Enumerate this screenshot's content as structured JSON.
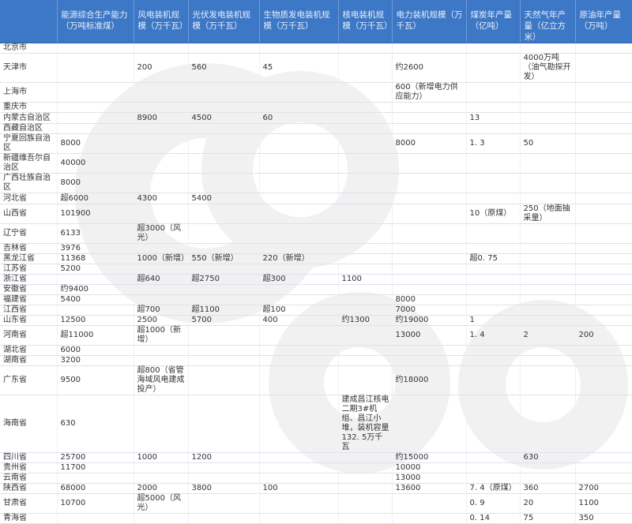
{
  "header": [
    "",
    "能源综合生产能力（万吨标准煤）",
    "风电装机规模（万千瓦）",
    "光伏发电装机规模（万千瓦）",
    "生物质发电装机规模（万千瓦）",
    "核电装机规模（万千瓦）",
    "电力装机规模（万千瓦）",
    "煤炭年产量（亿吨）",
    "天然气年产量（亿立方米）",
    "原油年产量（万吨）"
  ],
  "rows": [
    [
      "北京市",
      "",
      "",
      "",
      "",
      "",
      "",
      "",
      "",
      ""
    ],
    [
      "天津市",
      "",
      "200",
      "560",
      "45",
      "",
      "约2600",
      "",
      "4000万吨（油气勘探开发）",
      ""
    ],
    [
      "上海市",
      "",
      "",
      "",
      "",
      "",
      "600（新增电力供应能力）",
      "",
      "",
      ""
    ],
    [
      "重庆市",
      "",
      "",
      "",
      "",
      "",
      "",
      "",
      "",
      ""
    ],
    [
      "内蒙古自治区",
      "",
      "8900",
      "4500",
      "60",
      "",
      "",
      "13",
      "",
      ""
    ],
    [
      "西藏自治区",
      "",
      "",
      "",
      "",
      "",
      "",
      "",
      "",
      ""
    ],
    [
      "宁夏回族自治区",
      "8000",
      "",
      "",
      "",
      "",
      "8000",
      "1. 3",
      "50",
      ""
    ],
    [
      "新疆维吾尔自治区",
      "40000",
      "",
      "",
      "",
      "",
      "",
      "",
      "",
      ""
    ],
    [
      "广西壮族自治区",
      "8000",
      "",
      "",
      "",
      "",
      "",
      "",
      "",
      ""
    ],
    [
      "河北省",
      "超6000",
      "4300",
      "5400",
      "",
      "",
      "",
      "",
      "",
      ""
    ],
    [
      "山西省",
      "101900",
      "",
      "",
      "",
      "",
      "",
      "10（原煤）",
      "250（地面抽采量）",
      ""
    ],
    [
      "辽宁省",
      "6133",
      "超3000（风光）",
      "",
      "",
      "",
      "",
      "",
      "",
      ""
    ],
    [
      "吉林省",
      "3976",
      "",
      "",
      "",
      "",
      "",
      "",
      "",
      ""
    ],
    [
      "黑龙江省",
      "11368",
      "1000（新增）",
      "550（新增）",
      "220（新增）",
      "",
      "",
      "超0. 75",
      "",
      ""
    ],
    [
      "江苏省",
      "5200",
      "",
      "",
      "",
      "",
      "",
      "",
      "",
      ""
    ],
    [
      "浙江省",
      "",
      "超640",
      "超2750",
      "超300",
      "1100",
      "",
      "",
      "",
      ""
    ],
    [
      "安徽省",
      "约9400",
      "",
      "",
      "",
      "",
      "",
      "",
      "",
      ""
    ],
    [
      "福建省",
      "5400",
      "",
      "",
      "",
      "",
      "8000",
      "",
      "",
      ""
    ],
    [
      "江西省",
      "",
      "超700",
      "超1100",
      "超100",
      "",
      "7000",
      "",
      "",
      ""
    ],
    [
      "山东省",
      "12500",
      "2500",
      "5700",
      "400",
      "约1300",
      "约19000",
      "1",
      "",
      ""
    ],
    [
      "河南省",
      "超11000",
      "超1000（新增）",
      "",
      "",
      "",
      "13000",
      "1. 4",
      "2",
      "200"
    ],
    [
      "湖北省",
      "6000",
      "",
      "",
      "",
      "",
      "",
      "",
      "",
      ""
    ],
    [
      "湖南省",
      "3200",
      "",
      "",
      "",
      "",
      "",
      "",
      "",
      ""
    ],
    [
      "广东省",
      "9500",
      "超800（省管海域风电建成投产）",
      "",
      "",
      "",
      "约18000",
      "",
      "",
      ""
    ],
    [
      "海南省",
      "630",
      "",
      "",
      "",
      "建成昌江核电二期3#机组、昌江小堆，装机容量132. 5万千瓦",
      "",
      "",
      "",
      ""
    ],
    [
      "四川省",
      "25700",
      "1000",
      "1200",
      "",
      "",
      "约15000",
      "",
      "630",
      ""
    ],
    [
      "贵州省",
      "11700",
      "",
      "",
      "",
      "",
      "10000",
      "",
      "",
      ""
    ],
    [
      "云南省",
      "",
      "",
      "",
      "",
      "",
      "13000",
      "",
      "",
      ""
    ],
    [
      "陕西省",
      "68000",
      "2000",
      "3800",
      "100",
      "",
      "13600",
      "7. 4（原煤）",
      "360",
      "2700"
    ],
    [
      "甘肃省",
      "10700",
      "超5000（风光）",
      "",
      "",
      "",
      "",
      "0. 9",
      "20",
      "1100"
    ],
    [
      "青海省",
      "",
      "",
      "",
      "",
      "",
      "",
      "0. 14",
      "75",
      "350"
    ]
  ],
  "colors": {
    "header_bg": "#3d78c6",
    "header_text": "#e8eefa",
    "watermark": "#f1f1f1"
  }
}
